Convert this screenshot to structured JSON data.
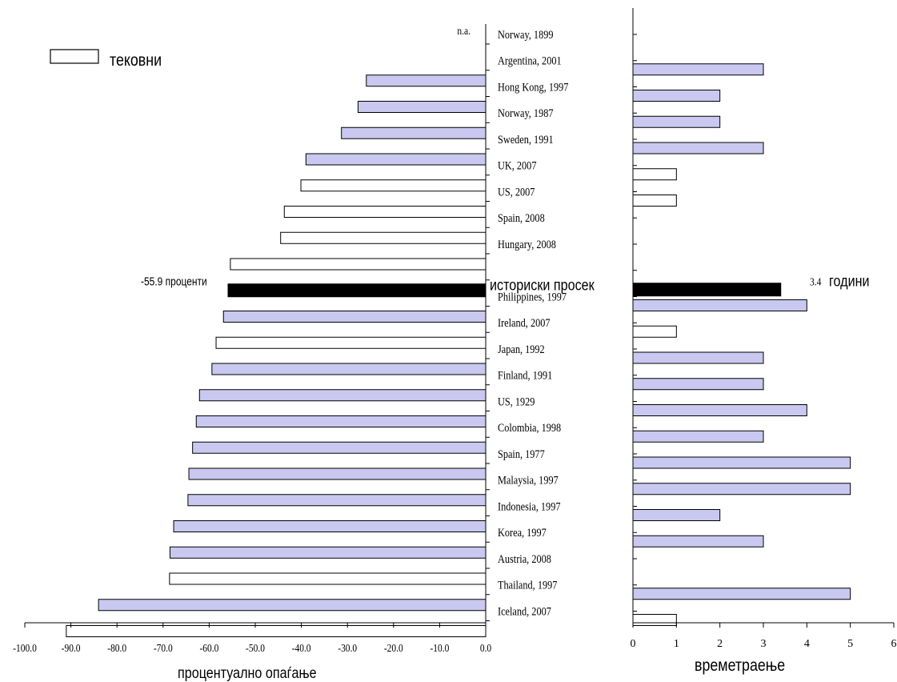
{
  "colors": {
    "historical_fill": "#c8c8f0",
    "current_fill": "#ffffff",
    "average_fill": "#000000",
    "stroke": "#000000"
  },
  "chart_data": {
    "type": "bar",
    "orientation": "horizontal",
    "legend": {
      "label": "тековни",
      "placement": "top-left"
    },
    "categories": [
      "Norway, 1899",
      "Argentina, 2001",
      "Hong Kong, 1997",
      "Norway, 1987",
      "Sweden, 1991",
      "UK, 2007",
      "US, 2007",
      "Spain, 2008",
      "Hungary, 2008",
      "историски просек",
      "Philippines, 1997",
      "Ireland, 2007",
      "Japan, 1992",
      "Finland, 1991",
      "US, 1929",
      "Colombia, 1998",
      "Spain, 1977",
      "Malaysia, 1997",
      "Indonesia, 1997",
      "Korea, 1997",
      "Austria, 2008",
      "Thailand, 1997",
      "Iceland, 2007"
    ],
    "group": [
      "historical",
      "historical",
      "historical",
      "historical",
      "historical",
      "current",
      "current",
      "current",
      "current",
      "average",
      "historical",
      "current",
      "historical",
      "historical",
      "historical",
      "historical",
      "historical",
      "historical",
      "historical",
      "historical",
      "current",
      "historical",
      "current"
    ],
    "panels": [
      {
        "name": "decline",
        "xlabel": "процентуално опаѓање",
        "xlim": [
          -100,
          0
        ],
        "xticks": [
          "-100.0",
          "-90.0",
          "-80.0",
          "-70.0",
          "-60.0",
          "-50.0",
          "-40.0",
          "-30.0",
          "-20.0",
          "-10.0",
          "0.0"
        ],
        "values": [
          null,
          -25.9,
          -27.7,
          -31.3,
          -39.0,
          -40.1,
          -43.7,
          -44.5,
          -55.4,
          -55.9,
          -56.9,
          -58.5,
          -59.4,
          -62.1,
          -62.8,
          -63.6,
          -64.4,
          -64.6,
          -67.7,
          -68.5,
          -68.6,
          -84.0,
          -91.0
        ],
        "annotations": [
          {
            "text": "n.a.",
            "category": "Norway, 1899"
          },
          {
            "text": "-55.9 проценти",
            "category": "историски просек"
          }
        ]
      },
      {
        "name": "duration",
        "xlabel": "времетраење",
        "xlim": [
          0,
          6
        ],
        "xticks": [
          "0",
          "1",
          "2",
          "3",
          "4",
          "5",
          "6"
        ],
        "values": [
          null,
          3,
          2,
          2,
          3,
          1,
          1,
          null,
          null,
          3.4,
          4,
          1,
          3,
          3,
          4,
          3,
          5,
          5,
          2,
          3,
          null,
          5,
          1
        ],
        "annotations": [
          {
            "text": "3.4",
            "suffix": "години",
            "category": "историски просек"
          }
        ]
      }
    ]
  }
}
